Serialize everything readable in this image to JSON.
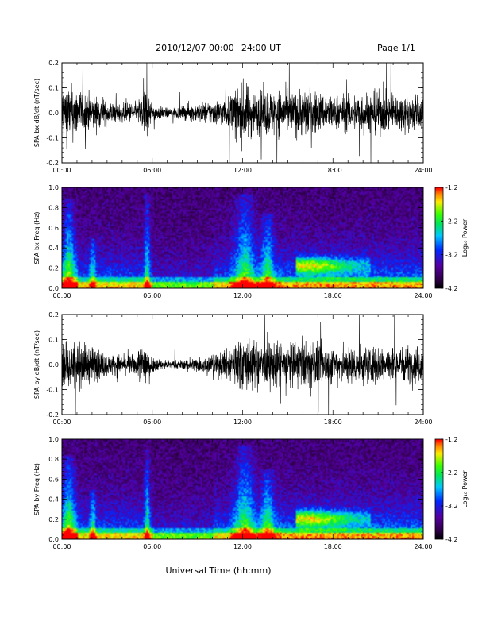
{
  "header": {
    "title": "2010/12/07  00:00−24:00 UT",
    "page": "Page 1/1"
  },
  "chart_data": [
    {
      "type": "line",
      "name": "bx-waveform",
      "ylabel": "SPA bx dB/dt (nT/sec)",
      "ylim": [
        -0.2,
        0.2
      ],
      "y_ticks": [
        "-0.2",
        "-0.1",
        "0.0",
        "0.1",
        "0.2"
      ],
      "y_tick_values": [
        -0.2,
        -0.1,
        0.0,
        0.1,
        0.2
      ],
      "xlim": [
        0,
        24
      ],
      "x_ticks": [
        "00:00",
        "06:00",
        "12:00",
        "18:00",
        "24:00"
      ],
      "amplitude_envelope": {
        "hours": [
          0,
          1,
          2,
          3,
          4,
          5,
          5.5,
          6,
          7,
          8,
          9,
          10,
          11,
          12,
          13,
          14,
          15,
          16,
          17,
          18,
          19,
          20,
          21,
          22,
          23,
          24
        ],
        "amp": [
          0.2,
          0.17,
          0.12,
          0.08,
          0.06,
          0.07,
          0.2,
          0.06,
          0.03,
          0.04,
          0.06,
          0.08,
          0.1,
          0.2,
          0.14,
          0.16,
          0.14,
          0.16,
          0.14,
          0.12,
          0.12,
          0.14,
          0.14,
          0.12,
          0.13,
          0.12
        ]
      }
    },
    {
      "type": "heatmap",
      "name": "bx-spectrogram",
      "ylabel": "SPA bx Freq (Hz)",
      "ylim": [
        0.0,
        1.0
      ],
      "y_ticks": [
        "0.0",
        "0.2",
        "0.4",
        "0.6",
        "0.8",
        "1.0"
      ],
      "y_tick_values": [
        0.0,
        0.2,
        0.4,
        0.6,
        0.8,
        1.0
      ],
      "xlim": [
        0,
        24
      ],
      "x_ticks": [
        "00:00",
        "06:00",
        "12:00",
        "18:00",
        "24:00"
      ],
      "colorbar": {
        "label": "Log₁₀ Power",
        "range": [
          -4.2,
          -1.2
        ],
        "ticks": [
          "-1.2",
          "-2.2",
          "-3.2",
          "-4.2"
        ],
        "tick_values": [
          -1.2,
          -2.2,
          -3.2,
          -4.2
        ]
      },
      "features": {
        "bursts": [
          {
            "hour": 0.4,
            "width": 0.35,
            "fmax": 0.9
          },
          {
            "hour": 2.0,
            "width": 0.2,
            "fmax": 0.5
          },
          {
            "hour": 5.6,
            "width": 0.18,
            "fmax": 0.95
          },
          {
            "hour": 12.1,
            "width": 0.6,
            "fmax": 0.95
          },
          {
            "hour": 13.6,
            "width": 0.4,
            "fmax": 0.75
          }
        ],
        "band": {
          "hour_start": 15.5,
          "hour_end": 20.5,
          "freq": 0.22,
          "peak_hour": 16.4
        }
      }
    },
    {
      "type": "line",
      "name": "by-waveform",
      "ylabel": "SPA by dB/dt (nT/sec)",
      "ylim": [
        -0.2,
        0.2
      ],
      "y_ticks": [
        "-0.2",
        "-0.1",
        "0.0",
        "0.1",
        "0.2"
      ],
      "y_tick_values": [
        -0.2,
        -0.1,
        0.0,
        0.1,
        0.2
      ],
      "xlim": [
        0,
        24
      ],
      "x_ticks": [
        "00:00",
        "06:00",
        "12:00",
        "18:00",
        "24:00"
      ],
      "amplitude_envelope": {
        "hours": [
          0,
          1,
          2,
          3,
          4,
          5,
          5.5,
          6,
          7,
          8,
          9,
          10,
          11,
          12,
          13,
          14,
          15,
          16,
          17,
          18,
          19,
          20,
          21,
          22,
          23,
          24
        ],
        "amp": [
          0.18,
          0.15,
          0.12,
          0.08,
          0.06,
          0.07,
          0.2,
          0.05,
          0.03,
          0.03,
          0.05,
          0.07,
          0.1,
          0.2,
          0.14,
          0.15,
          0.14,
          0.15,
          0.14,
          0.12,
          0.12,
          0.13,
          0.13,
          0.12,
          0.12,
          0.12
        ]
      }
    },
    {
      "type": "heatmap",
      "name": "by-spectrogram",
      "ylabel": "SPA by Freq (Hz)",
      "ylim": [
        0.0,
        1.0
      ],
      "y_ticks": [
        "0.0",
        "0.2",
        "0.4",
        "0.6",
        "0.8",
        "1.0"
      ],
      "y_tick_values": [
        0.0,
        0.2,
        0.4,
        0.6,
        0.8,
        1.0
      ],
      "xlim": [
        0,
        24
      ],
      "x_ticks": [
        "00:00",
        "06:00",
        "12:00",
        "18:00",
        "24:00"
      ],
      "colorbar": {
        "label": "Log₁₀ Power",
        "range": [
          -4.2,
          -1.2
        ],
        "ticks": [
          "-1.2",
          "-2.2",
          "-3.2",
          "-4.2"
        ],
        "tick_values": [
          -1.2,
          -2.2,
          -3.2,
          -4.2
        ]
      },
      "features": {
        "bursts": [
          {
            "hour": 0.4,
            "width": 0.35,
            "fmax": 0.85
          },
          {
            "hour": 2.0,
            "width": 0.2,
            "fmax": 0.5
          },
          {
            "hour": 5.6,
            "width": 0.18,
            "fmax": 0.9
          },
          {
            "hour": 12.1,
            "width": 0.6,
            "fmax": 0.95
          },
          {
            "hour": 13.6,
            "width": 0.4,
            "fmax": 0.7
          }
        ],
        "band": {
          "hour_start": 15.5,
          "hour_end": 20.5,
          "freq": 0.2,
          "peak_hour": 16.4
        }
      }
    }
  ],
  "footer": {
    "xlabel": "Universal Time (hh:mm)"
  }
}
